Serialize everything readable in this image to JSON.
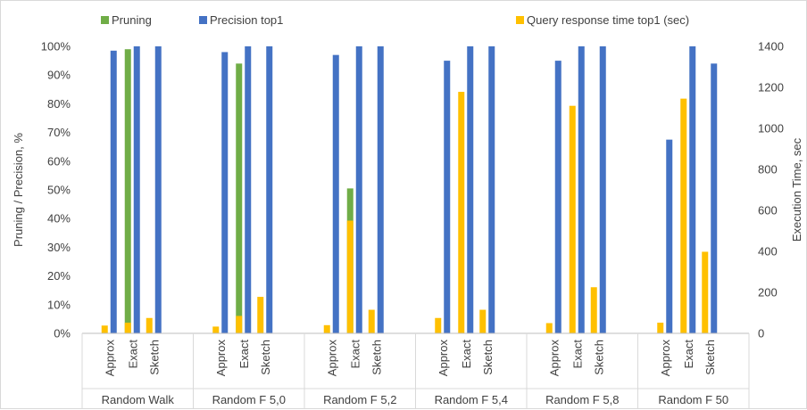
{
  "chart_data": {
    "type": "bar",
    "groups": [
      "Random Walk",
      "Random F 5,0",
      "Random F 5,2",
      "Random F 5,4",
      "Random F 5,8",
      "Random  F 50"
    ],
    "subcategories": [
      "Approx",
      "Exact",
      "Sketch"
    ],
    "series": [
      {
        "name": "Pruning",
        "axis": "left",
        "color": "#70ad47",
        "values": [
          [
            null,
            0.99,
            null
          ],
          [
            null,
            0.94,
            null
          ],
          [
            null,
            0.505,
            null
          ],
          [
            null,
            null,
            null
          ],
          [
            null,
            null,
            null
          ],
          [
            null,
            null,
            null
          ]
        ]
      },
      {
        "name": "Precision top1",
        "axis": "left",
        "color": "#4472c4",
        "values": [
          [
            0.985,
            1.0,
            1.0
          ],
          [
            0.98,
            1.0,
            1.0
          ],
          [
            0.97,
            1.0,
            1.0
          ],
          [
            0.95,
            1.0,
            1.0
          ],
          [
            0.95,
            1.0,
            1.0
          ],
          [
            0.675,
            1.0,
            0.94
          ]
        ]
      },
      {
        "name": "Query response time top1 (sec)",
        "axis": "right",
        "color": "#ffc000",
        "values": [
          [
            38,
            52,
            75
          ],
          [
            33,
            85,
            178
          ],
          [
            40,
            550,
            115
          ],
          [
            75,
            1178,
            115
          ],
          [
            50,
            1110,
            225
          ],
          [
            52,
            1145,
            398
          ]
        ]
      }
    ],
    "y_left": {
      "label": "Pruning / Precision, %",
      "range": [
        0,
        1
      ],
      "ticks": [
        "0%",
        "10%",
        "20%",
        "30%",
        "40%",
        "50%",
        "60%",
        "70%",
        "80%",
        "90%",
        "100%"
      ]
    },
    "y_right": {
      "label": "Execution Time, sec",
      "range": [
        0,
        1400
      ],
      "ticks": [
        "0",
        "200",
        "400",
        "600",
        "800",
        "1000",
        "1200",
        "1400"
      ]
    },
    "grid": false,
    "legend": "top"
  }
}
